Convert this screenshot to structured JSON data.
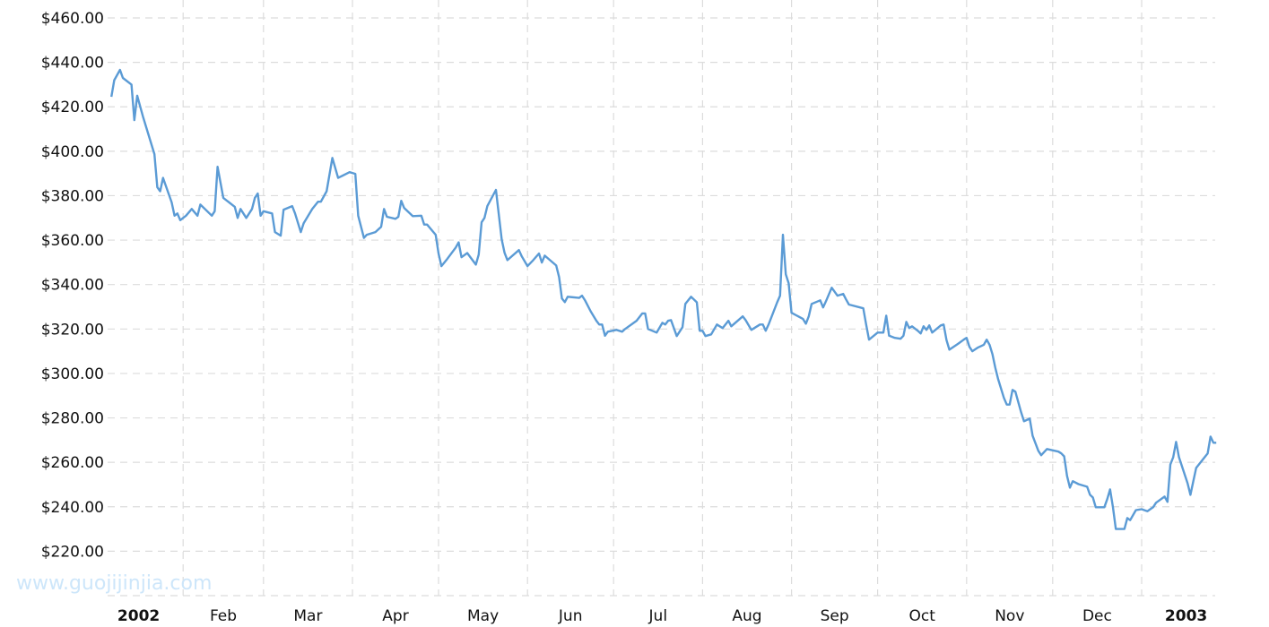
{
  "watermark": "www.guojijinjia.com",
  "chart_data": {
    "type": "line",
    "title": "",
    "xlabel": "",
    "ylabel": "",
    "xlim": [
      "2002-01-01",
      "2003-01-28"
    ],
    "ylim": [
      200,
      460
    ],
    "grid": true,
    "line_color": "#5b9bd5",
    "y_ticks": [
      {
        "value": 460,
        "label": "$460.00"
      },
      {
        "value": 440,
        "label": "$440.00"
      },
      {
        "value": 420,
        "label": "$420.00"
      },
      {
        "value": 400,
        "label": "$400.00"
      },
      {
        "value": 380,
        "label": "$380.00"
      },
      {
        "value": 360,
        "label": "$360.00"
      },
      {
        "value": 340,
        "label": "$340.00"
      },
      {
        "value": 320,
        "label": "$320.00"
      },
      {
        "value": 300,
        "label": "$300.00"
      },
      {
        "value": 280,
        "label": "$280.00"
      },
      {
        "value": 260,
        "label": "$260.00"
      },
      {
        "value": 240,
        "label": "$240.00"
      },
      {
        "value": 220,
        "label": "$220.00"
      }
    ],
    "x_ticks": [
      {
        "start": "2002-01-01",
        "label": "2002",
        "bold": true
      },
      {
        "start": "2002-02-01",
        "label": "Feb"
      },
      {
        "start": "2002-03-01",
        "label": "Mar"
      },
      {
        "start": "2002-04-01",
        "label": "Apr"
      },
      {
        "start": "2002-05-01",
        "label": "May"
      },
      {
        "start": "2002-06-01",
        "label": "Jun"
      },
      {
        "start": "2002-07-01",
        "label": "Jul"
      },
      {
        "start": "2002-08-01",
        "label": "Aug"
      },
      {
        "start": "2002-09-01",
        "label": "Sep"
      },
      {
        "start": "2002-10-01",
        "label": "Oct"
      },
      {
        "start": "2002-11-01",
        "label": "Nov"
      },
      {
        "start": "2002-12-01",
        "label": "Dec"
      },
      {
        "start": "2003-01-01",
        "label": "2003",
        "bold": true
      }
    ],
    "points": [
      [
        "2002-01-07",
        424.5
      ],
      [
        "2002-01-08",
        432
      ],
      [
        "2002-01-10",
        436.6
      ],
      [
        "2002-01-11",
        433
      ],
      [
        "2002-01-14",
        430
      ],
      [
        "2002-01-15",
        414
      ],
      [
        "2002-01-16",
        425
      ],
      [
        "2002-01-18",
        415.6
      ],
      [
        "2002-01-22",
        398.7
      ],
      [
        "2002-01-23",
        383.8
      ],
      [
        "2002-01-24",
        382
      ],
      [
        "2002-01-25",
        388
      ],
      [
        "2002-01-28",
        377
      ],
      [
        "2002-01-29",
        371
      ],
      [
        "2002-01-30",
        372
      ],
      [
        "2002-01-31",
        369
      ],
      [
        "2002-02-02",
        371
      ],
      [
        "2002-02-04",
        374
      ],
      [
        "2002-02-06",
        371
      ],
      [
        "2002-02-07",
        376
      ],
      [
        "2002-02-11",
        371
      ],
      [
        "2002-02-12",
        373
      ],
      [
        "2002-02-13",
        393
      ],
      [
        "2002-02-15",
        379
      ],
      [
        "2002-02-19",
        375
      ],
      [
        "2002-02-20",
        370
      ],
      [
        "2002-02-21",
        374
      ],
      [
        "2002-02-23",
        370
      ],
      [
        "2002-02-25",
        374
      ],
      [
        "2002-02-26",
        379
      ],
      [
        "2002-02-27",
        381
      ],
      [
        "2002-02-28",
        371
      ],
      [
        "2002-03-01",
        373
      ],
      [
        "2002-03-04",
        372
      ],
      [
        "2002-03-05",
        363.6
      ],
      [
        "2002-03-07",
        362
      ],
      [
        "2002-03-08",
        373.7
      ],
      [
        "2002-03-11",
        375.3
      ],
      [
        "2002-03-12",
        372
      ],
      [
        "2002-03-14",
        363.6
      ],
      [
        "2002-03-15",
        367.6
      ],
      [
        "2002-03-18",
        374
      ],
      [
        "2002-03-20",
        377.3
      ],
      [
        "2002-03-21",
        377.3
      ],
      [
        "2002-03-23",
        382
      ],
      [
        "2002-03-25",
        397
      ],
      [
        "2002-03-27",
        388
      ],
      [
        "2002-03-31",
        390.6
      ],
      [
        "2002-04-02",
        389.8
      ],
      [
        "2002-04-03",
        371
      ],
      [
        "2002-04-05",
        361
      ],
      [
        "2002-04-06",
        362.4
      ],
      [
        "2002-04-09",
        363.6
      ],
      [
        "2002-04-11",
        366
      ],
      [
        "2002-04-12",
        374
      ],
      [
        "2002-04-13",
        370.5
      ],
      [
        "2002-04-16",
        369.6
      ],
      [
        "2002-04-17",
        370.5
      ],
      [
        "2002-04-18",
        377.7
      ],
      [
        "2002-04-19",
        374.5
      ],
      [
        "2002-04-22",
        370.8
      ],
      [
        "2002-04-25",
        371
      ],
      [
        "2002-04-26",
        367
      ],
      [
        "2002-04-27",
        367
      ],
      [
        "2002-04-30",
        362.4
      ],
      [
        "2002-05-01",
        354
      ],
      [
        "2002-05-02",
        348.3
      ],
      [
        "2002-05-04",
        351.5
      ],
      [
        "2002-05-07",
        356.7
      ],
      [
        "2002-05-08",
        359
      ],
      [
        "2002-05-09",
        352.3
      ],
      [
        "2002-05-11",
        354.2
      ],
      [
        "2002-05-14",
        349
      ],
      [
        "2002-05-15",
        353.5
      ],
      [
        "2002-05-16",
        368
      ],
      [
        "2002-05-17",
        370
      ],
      [
        "2002-05-18",
        375.3
      ],
      [
        "2002-05-21",
        382.6
      ],
      [
        "2002-05-23",
        360.4
      ],
      [
        "2002-05-24",
        354.3
      ],
      [
        "2002-05-25",
        351
      ],
      [
        "2002-05-29",
        355.5
      ],
      [
        "2002-05-30",
        352.7
      ],
      [
        "2002-06-01",
        348.3
      ],
      [
        "2002-06-03",
        351
      ],
      [
        "2002-06-05",
        354
      ],
      [
        "2002-06-06",
        349.9
      ],
      [
        "2002-06-07",
        353
      ],
      [
        "2002-06-11",
        348.6
      ],
      [
        "2002-06-12",
        343.4
      ],
      [
        "2002-06-13",
        333.7
      ],
      [
        "2002-06-14",
        332.1
      ],
      [
        "2002-06-15",
        334.5
      ],
      [
        "2002-06-19",
        334
      ],
      [
        "2002-06-20",
        335
      ],
      [
        "2002-06-21",
        333
      ],
      [
        "2002-06-23",
        328
      ],
      [
        "2002-06-25",
        323.7
      ],
      [
        "2002-06-26",
        322
      ],
      [
        "2002-06-27",
        322
      ],
      [
        "2002-06-28",
        317
      ],
      [
        "2002-06-29",
        318.8
      ],
      [
        "2002-07-02",
        319.6
      ],
      [
        "2002-07-04",
        318.8
      ],
      [
        "2002-07-05",
        320
      ],
      [
        "2002-07-09",
        323.7
      ],
      [
        "2002-07-11",
        327
      ],
      [
        "2002-07-12",
        327
      ],
      [
        "2002-07-13",
        320
      ],
      [
        "2002-07-16",
        318.4
      ],
      [
        "2002-07-18",
        322.8
      ],
      [
        "2002-07-19",
        322
      ],
      [
        "2002-07-20",
        323.7
      ],
      [
        "2002-07-21",
        324
      ],
      [
        "2002-07-23",
        316.8
      ],
      [
        "2002-07-25",
        320.8
      ],
      [
        "2002-07-26",
        331.3
      ],
      [
        "2002-07-28",
        334.5
      ],
      [
        "2002-07-30",
        332
      ],
      [
        "2002-07-31",
        319.2
      ],
      [
        "2002-08-01",
        319.2
      ],
      [
        "2002-08-02",
        316.8
      ],
      [
        "2002-08-04",
        317.6
      ],
      [
        "2002-08-06",
        322
      ],
      [
        "2002-08-08",
        320.4
      ],
      [
        "2002-08-10",
        323.7
      ],
      [
        "2002-08-11",
        321.2
      ],
      [
        "2002-08-15",
        325.7
      ],
      [
        "2002-08-16",
        324
      ],
      [
        "2002-08-18",
        319.6
      ],
      [
        "2002-08-21",
        322
      ],
      [
        "2002-08-22",
        322
      ],
      [
        "2002-08-23",
        319.2
      ],
      [
        "2002-08-24",
        322
      ],
      [
        "2002-08-27",
        332
      ],
      [
        "2002-08-28",
        335
      ],
      [
        "2002-08-29",
        362.4
      ],
      [
        "2002-08-30",
        344.6
      ],
      [
        "2002-08-31",
        340.6
      ],
      [
        "2002-09-01",
        327.3
      ],
      [
        "2002-09-05",
        324.5
      ],
      [
        "2002-09-06",
        322.4
      ],
      [
        "2002-09-07",
        325.7
      ],
      [
        "2002-09-08",
        331.3
      ],
      [
        "2002-09-11",
        332.9
      ],
      [
        "2002-09-12",
        329.7
      ],
      [
        "2002-09-13",
        332.5
      ],
      [
        "2002-09-15",
        338.6
      ],
      [
        "2002-09-17",
        335
      ],
      [
        "2002-09-19",
        335.8
      ],
      [
        "2002-09-20",
        333.3
      ],
      [
        "2002-09-21",
        331
      ],
      [
        "2002-09-26",
        329.3
      ],
      [
        "2002-09-27",
        322
      ],
      [
        "2002-09-28",
        315.2
      ],
      [
        "2002-10-01",
        318.4
      ],
      [
        "2002-10-03",
        318.4
      ],
      [
        "2002-10-04",
        326
      ],
      [
        "2002-10-05",
        317
      ],
      [
        "2002-10-07",
        316
      ],
      [
        "2002-10-09",
        315.6
      ],
      [
        "2002-10-10",
        317
      ],
      [
        "2002-10-11",
        323.2
      ],
      [
        "2002-10-12",
        320.4
      ],
      [
        "2002-10-13",
        321.2
      ],
      [
        "2002-10-15",
        319.2
      ],
      [
        "2002-10-16",
        318
      ],
      [
        "2002-10-17",
        321.2
      ],
      [
        "2002-10-18",
        319.6
      ],
      [
        "2002-10-19",
        321.6
      ],
      [
        "2002-10-20",
        318.4
      ],
      [
        "2002-10-23",
        321.6
      ],
      [
        "2002-10-24",
        322
      ],
      [
        "2002-10-25",
        315
      ],
      [
        "2002-10-26",
        310.7
      ],
      [
        "2002-10-29",
        313.3
      ],
      [
        "2002-10-31",
        315.2
      ],
      [
        "2002-11-01",
        316
      ],
      [
        "2002-11-02",
        312
      ],
      [
        "2002-11-03",
        310
      ],
      [
        "2002-11-05",
        311.7
      ],
      [
        "2002-11-07",
        312.9
      ],
      [
        "2002-11-08",
        315.2
      ],
      [
        "2002-11-09",
        312.9
      ],
      [
        "2002-11-10",
        308.7
      ],
      [
        "2002-11-11",
        302.6
      ],
      [
        "2002-11-12",
        297.4
      ],
      [
        "2002-11-14",
        289
      ],
      [
        "2002-11-15",
        286
      ],
      [
        "2002-11-16",
        286
      ],
      [
        "2002-11-17",
        292.6
      ],
      [
        "2002-11-18",
        291.8
      ],
      [
        "2002-11-20",
        282.5
      ],
      [
        "2002-11-21",
        278.5
      ],
      [
        "2002-11-23",
        279.7
      ],
      [
        "2002-11-24",
        272
      ],
      [
        "2002-11-26",
        265.2
      ],
      [
        "2002-11-27",
        263.2
      ],
      [
        "2002-11-29",
        266
      ],
      [
        "2002-12-03",
        264.8
      ],
      [
        "2002-12-04",
        264
      ],
      [
        "2002-12-05",
        262.7
      ],
      [
        "2002-12-06",
        253.9
      ],
      [
        "2002-12-07",
        248.6
      ],
      [
        "2002-12-08",
        251.5
      ],
      [
        "2002-12-10",
        250.2
      ],
      [
        "2002-12-13",
        249
      ],
      [
        "2002-12-14",
        245.4
      ],
      [
        "2002-12-15",
        244.2
      ],
      [
        "2002-12-16",
        239.8
      ],
      [
        "2002-12-19",
        239.8
      ],
      [
        "2002-12-20",
        243.4
      ],
      [
        "2002-12-21",
        247.8
      ],
      [
        "2002-12-22",
        239.8
      ],
      [
        "2002-12-23",
        230
      ],
      [
        "2002-12-26",
        230
      ],
      [
        "2002-12-27",
        234.9
      ],
      [
        "2002-12-28",
        234
      ],
      [
        "2002-12-30",
        238.5
      ],
      [
        "2003-01-01",
        238.9
      ],
      [
        "2003-01-03",
        238
      ],
      [
        "2003-01-05",
        239.8
      ],
      [
        "2003-01-06",
        241.8
      ],
      [
        "2003-01-09",
        244.6
      ],
      [
        "2003-01-10",
        242.2
      ],
      [
        "2003-01-11",
        259
      ],
      [
        "2003-01-12",
        262.3
      ],
      [
        "2003-01-13",
        269.2
      ],
      [
        "2003-01-14",
        262.3
      ],
      [
        "2003-01-17",
        250.6
      ],
      [
        "2003-01-18",
        245.4
      ],
      [
        "2003-01-19",
        251.5
      ],
      [
        "2003-01-20",
        257.5
      ],
      [
        "2003-01-24",
        264
      ],
      [
        "2003-01-25",
        271.6
      ],
      [
        "2003-01-26",
        268.8
      ],
      [
        "2003-01-27",
        268.8
      ]
    ]
  }
}
